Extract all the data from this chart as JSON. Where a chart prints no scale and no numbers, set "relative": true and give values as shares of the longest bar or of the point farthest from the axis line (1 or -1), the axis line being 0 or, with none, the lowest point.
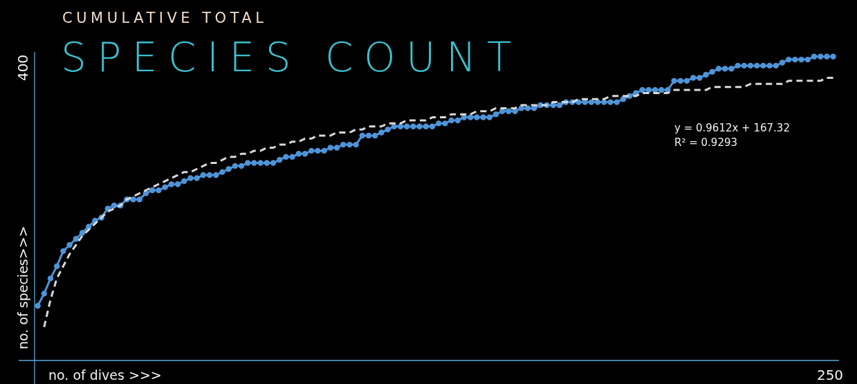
{
  "chart_data": {
    "type": "line",
    "title": "SPECIES COUNT",
    "subtitle": "CUMULATIVE TOTAL",
    "xlabel": "no. of dives >>>",
    "ylabel": "no. of species>>>",
    "annotations": [
      "y = 0.9612x + 167.32",
      "R² = 0.9293",
      "400",
      "250"
    ],
    "relative": true,
    "marker": "circle",
    "categories": [
      null,
      null,
      null,
      null,
      null,
      null,
      null,
      null,
      null,
      null,
      null,
      null,
      null,
      null,
      null,
      null,
      null,
      null,
      null,
      null,
      null,
      null,
      null,
      null,
      null,
      null,
      null,
      null,
      null,
      null,
      null,
      null,
      null,
      null,
      null,
      null,
      null,
      null,
      null,
      null,
      null,
      null,
      null,
      null,
      null,
      null,
      null,
      null,
      null,
      null,
      null,
      null,
      null,
      null,
      null,
      null,
      null,
      null,
      null,
      null,
      null,
      null,
      null,
      null,
      null,
      null,
      null,
      null,
      null,
      null,
      null,
      null,
      null,
      null,
      null,
      null,
      null,
      null,
      null,
      null,
      null,
      null,
      null,
      null,
      null,
      null,
      null,
      null,
      null,
      null,
      null,
      null,
      null,
      null,
      null,
      null,
      null,
      null,
      null,
      null,
      null,
      null,
      null,
      null,
      null,
      null,
      null,
      null,
      null,
      null,
      null,
      null,
      null,
      null,
      null,
      null,
      null,
      null,
      null,
      null,
      null,
      null,
      null,
      null,
      null,
      null
    ],
    "series": [
      {
        "color": "#4f94d8",
        "values": [
          0.18,
          0.22,
          0.27,
          0.31,
          0.36,
          0.38,
          0.4,
          0.42,
          0.44,
          0.46,
          0.47,
          0.5,
          0.51,
          0.51,
          0.53,
          0.53,
          0.53,
          0.55,
          0.56,
          0.56,
          0.57,
          0.58,
          0.58,
          0.59,
          0.6,
          0.6,
          0.61,
          0.61,
          0.61,
          0.62,
          0.63,
          0.64,
          0.64,
          0.65,
          0.65,
          0.65,
          0.65,
          0.65,
          0.66,
          0.67,
          0.67,
          0.68,
          0.68,
          0.69,
          0.69,
          0.69,
          0.7,
          0.7,
          0.71,
          0.71,
          0.71,
          0.74,
          0.74,
          0.74,
          0.75,
          0.76,
          0.77,
          0.77,
          0.77,
          0.77,
          0.77,
          0.77,
          0.77,
          0.78,
          0.78,
          0.79,
          0.79,
          0.8,
          0.8,
          0.8,
          0.8,
          0.8,
          0.81,
          0.82,
          0.82,
          0.82,
          0.83,
          0.83,
          0.83,
          0.84,
          0.84,
          0.84,
          0.84,
          0.85,
          0.85,
          0.85,
          0.85,
          0.85,
          0.85,
          0.85,
          0.85,
          0.85,
          0.86,
          0.87,
          0.88,
          0.89,
          0.89,
          0.89,
          0.89,
          0.89,
          0.92,
          0.92,
          0.92,
          0.93,
          0.93,
          0.94,
          0.95,
          0.96,
          0.96,
          0.96,
          0.97,
          0.97,
          0.97,
          0.97,
          0.97,
          0.97,
          0.97,
          0.98,
          0.99,
          0.99,
          0.99,
          0.99,
          1,
          1,
          1,
          1
        ]
      },
      {
        "type": "line",
        "marker": "none",
        "line_style": "dashed",
        "color": "#d9d9d9",
        "values": [
          null,
          0.11,
          0.2,
          0.27,
          0.31,
          0.35,
          0.38,
          0.41,
          0.43,
          0.45,
          0.47,
          0.49,
          0.5,
          0.51,
          0.53,
          0.54,
          0.55,
          0.56,
          0.57,
          0.58,
          0.59,
          0.6,
          0.61,
          0.62,
          0.62,
          0.63,
          0.64,
          0.65,
          0.65,
          0.66,
          0.67,
          0.67,
          0.68,
          0.68,
          0.69,
          0.69,
          0.7,
          0.7,
          0.71,
          0.71,
          0.72,
          0.72,
          0.73,
          0.73,
          0.74,
          0.74,
          0.74,
          0.75,
          0.75,
          0.75,
          0.76,
          0.76,
          0.77,
          0.77,
          0.77,
          0.78,
          0.78,
          0.78,
          0.79,
          0.79,
          0.79,
          0.79,
          0.8,
          0.8,
          0.8,
          0.81,
          0.81,
          0.81,
          0.81,
          0.82,
          0.82,
          0.82,
          0.83,
          0.83,
          0.83,
          0.83,
          0.84,
          0.84,
          0.84,
          0.84,
          0.84,
          0.85,
          0.85,
          0.85,
          0.85,
          0.86,
          0.86,
          0.86,
          0.86,
          0.86,
          0.87,
          0.87,
          0.87,
          0.87,
          0.87,
          0.88,
          0.88,
          0.88,
          0.88,
          0.88,
          0.89,
          0.89,
          0.89,
          0.89,
          0.89,
          0.89,
          0.9,
          0.9,
          0.9,
          0.9,
          0.9,
          0.9,
          0.91,
          0.91,
          0.91,
          0.91,
          0.91,
          0.91,
          0.92,
          0.92,
          0.92,
          0.92,
          0.92,
          0.92,
          0.93,
          0.93
        ]
      }
    ]
  }
}
